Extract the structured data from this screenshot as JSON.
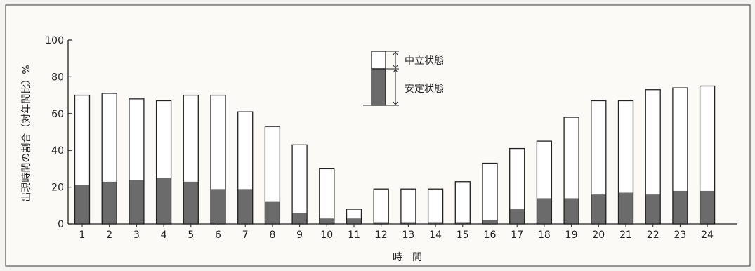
{
  "chart_data": {
    "type": "bar",
    "stacked": true,
    "ylabel": "出現時間の割合（対年間比）%",
    "xlabel": "時　間",
    "ylim": [
      0,
      100
    ],
    "yticks": [
      0,
      20,
      40,
      60,
      80,
      100
    ],
    "categories": [
      "1",
      "2",
      "3",
      "4",
      "5",
      "6",
      "7",
      "8",
      "9",
      "10",
      "11",
      "12",
      "13",
      "14",
      "15",
      "16",
      "17",
      "18",
      "19",
      "20",
      "21",
      "22",
      "23",
      "24"
    ],
    "series": [
      {
        "name": "安定状態",
        "color": "#6b6b6b",
        "values": [
          21,
          23,
          24,
          25,
          23,
          19,
          19,
          12,
          6,
          3,
          3,
          1,
          1,
          1,
          1,
          2,
          8,
          14,
          14,
          16,
          17,
          16,
          18,
          18
        ]
      },
      {
        "name": "中立状態",
        "color": "#ffffff",
        "values": [
          49,
          48,
          44,
          42,
          47,
          51,
          42,
          41,
          37,
          27,
          5,
          18,
          18,
          18,
          22,
          31,
          33,
          31,
          44,
          51,
          50,
          57,
          56,
          57
        ]
      }
    ],
    "legend_position": "top-center",
    "grid": false
  }
}
